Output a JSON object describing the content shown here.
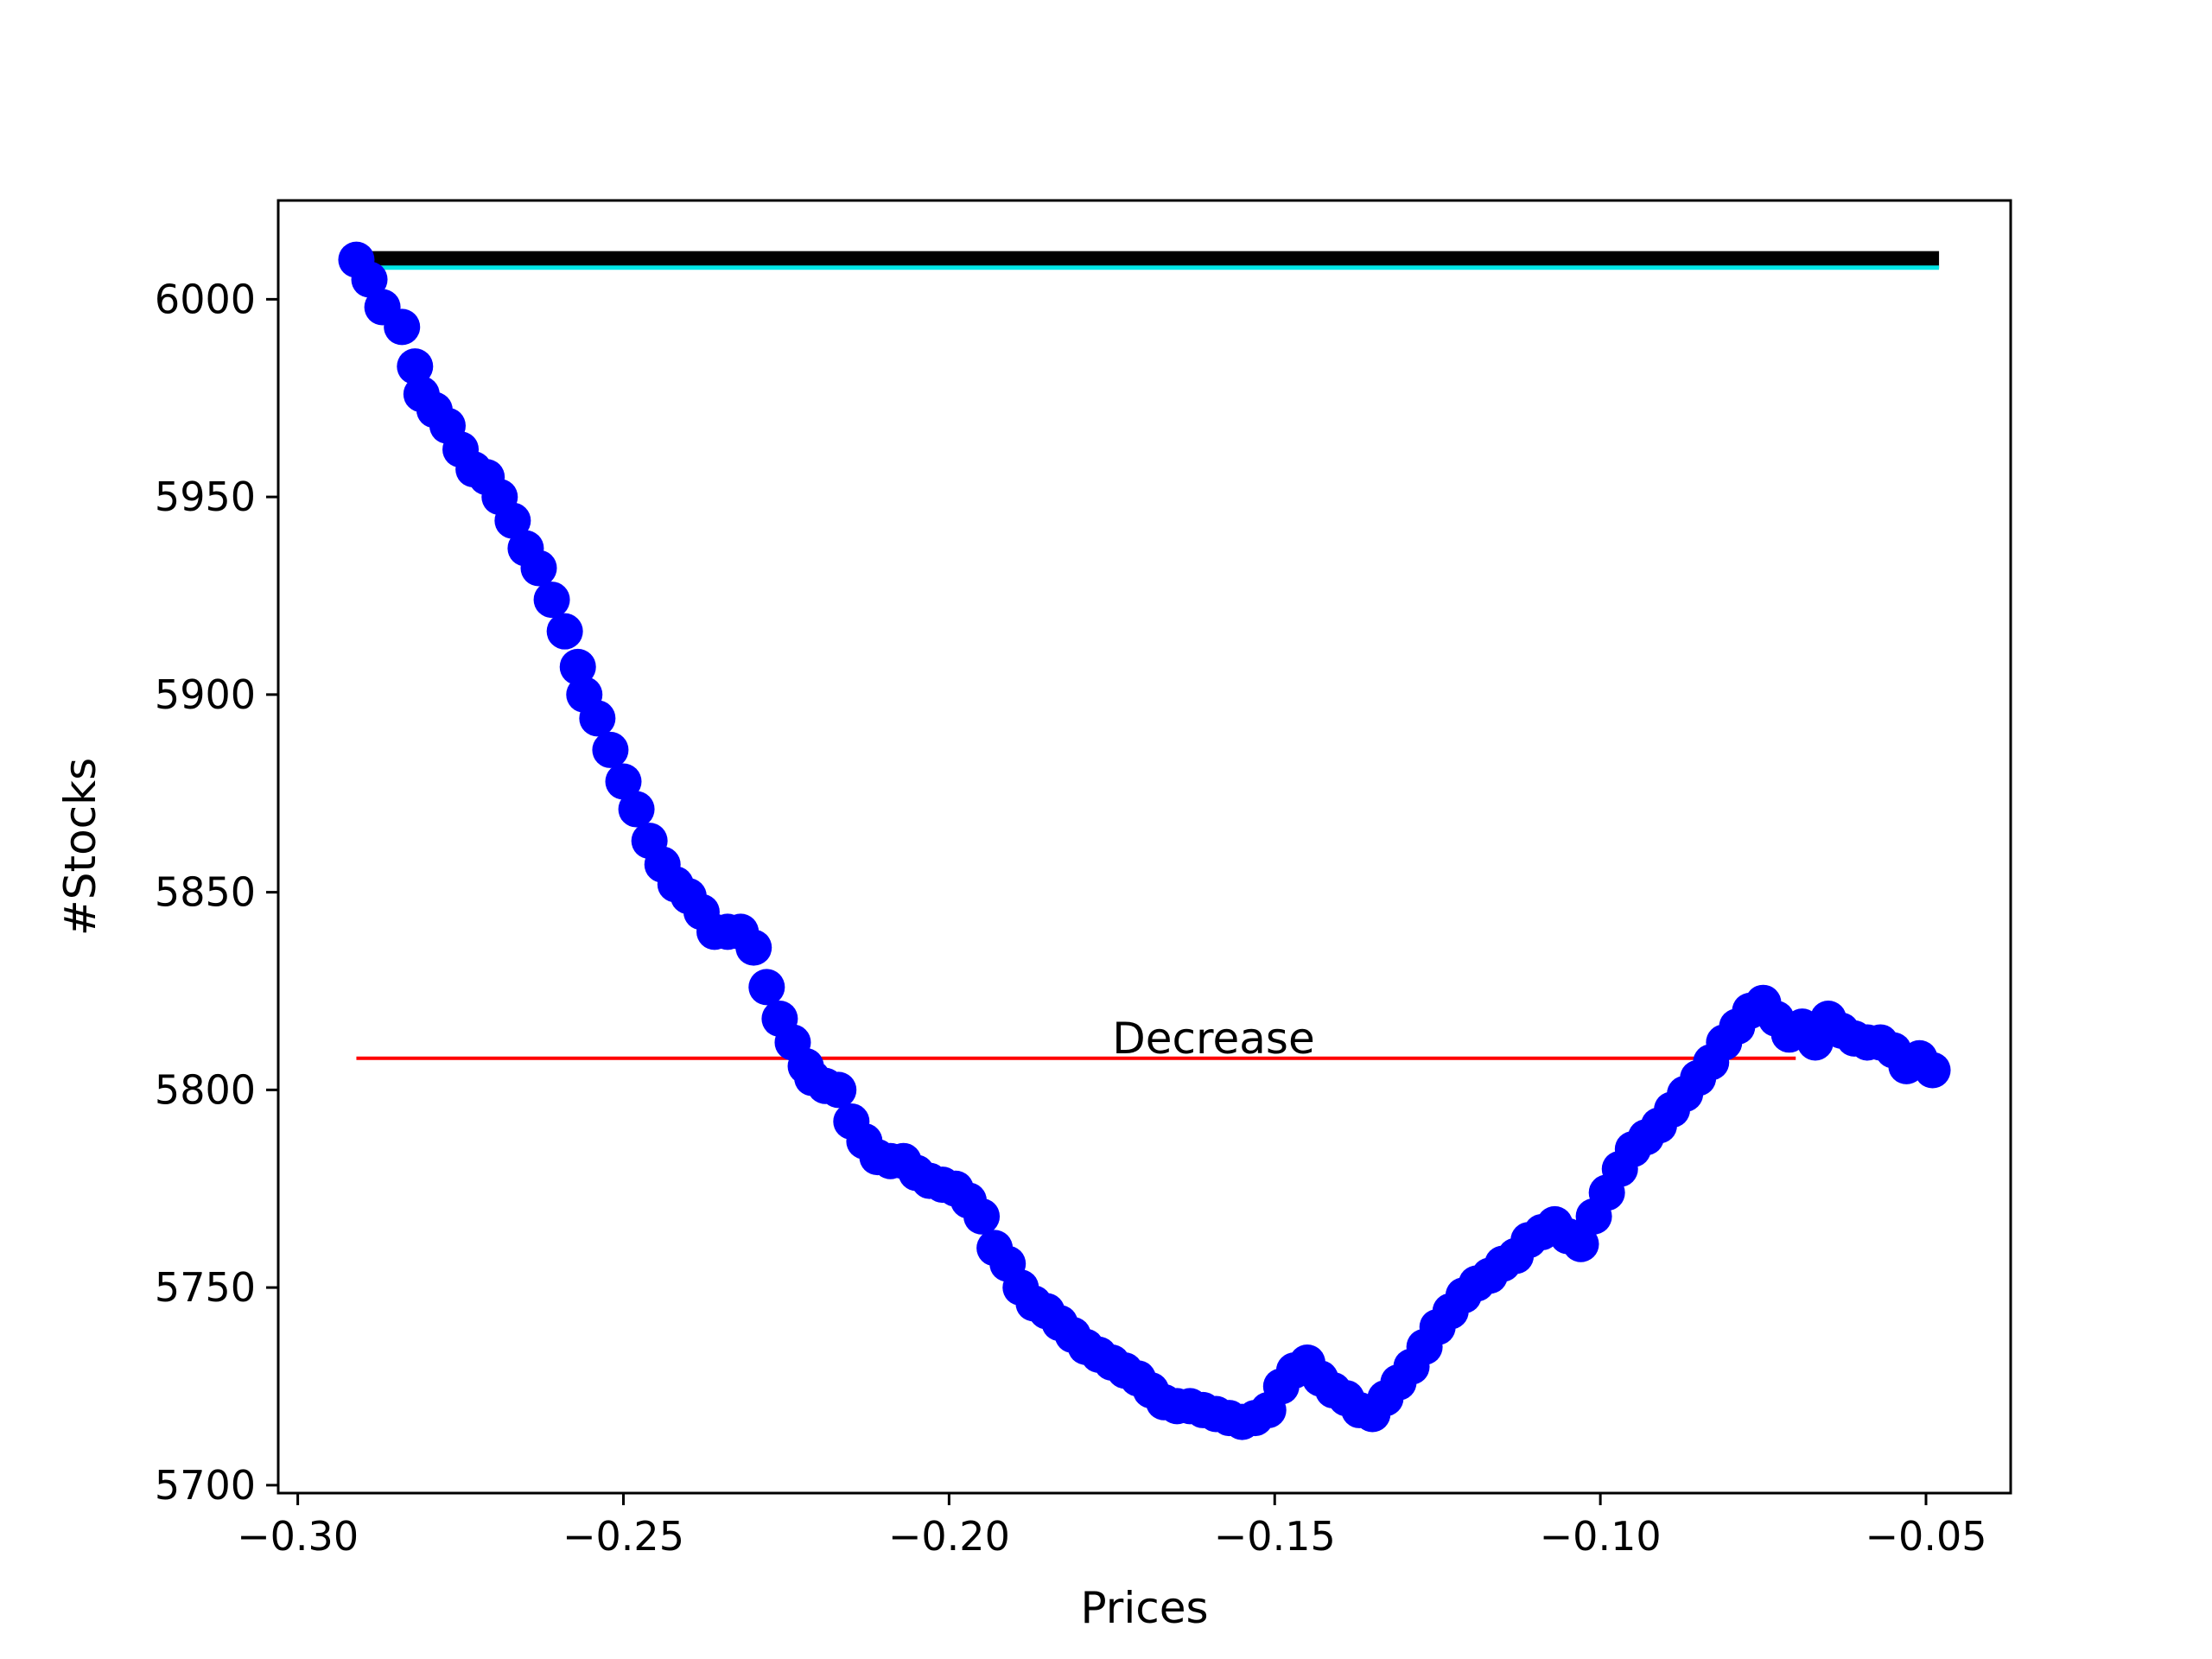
{
  "chart_data": {
    "type": "scatter",
    "title": "",
    "xlabel": "Prices",
    "ylabel": "#Stocks",
    "xlim": [
      -0.303,
      -0.037
    ],
    "ylim": [
      5698,
      6025
    ],
    "xticks": [
      -0.3,
      -0.25,
      -0.2,
      -0.15,
      -0.1,
      -0.05
    ],
    "xtick_labels": [
      "−0.30",
      "−0.25",
      "−0.20",
      "−0.15",
      "−0.10",
      "−0.05"
    ],
    "yticks": [
      5700,
      5750,
      5800,
      5850,
      5900,
      5950,
      6000
    ],
    "ytick_labels": [
      "5700",
      "5750",
      "5800",
      "5850",
      "5900",
      "5950",
      "6000"
    ],
    "grid": false,
    "reference_lines": [
      {
        "color": "#000000",
        "y": 6010,
        "x": [
          -0.291,
          -0.048
        ]
      },
      {
        "color": "#00e5e5",
        "y": 6008,
        "x": [
          -0.291,
          -0.048
        ]
      },
      {
        "color": "#ff0000",
        "y": 5808,
        "x": [
          -0.291,
          -0.07
        ]
      }
    ],
    "annotation": {
      "text": "Decrease",
      "x": -0.17,
      "y": 5811
    },
    "series": [
      {
        "color": "#0000ff",
        "x": [
          -0.291,
          -0.289,
          -0.287,
          -0.284,
          -0.282,
          -0.281,
          -0.279,
          -0.277,
          -0.275,
          -0.273,
          -0.271,
          -0.269,
          -0.267,
          -0.265,
          -0.263,
          -0.261,
          -0.259,
          -0.257,
          -0.256,
          -0.254,
          -0.252,
          -0.25,
          -0.248,
          -0.246,
          -0.244,
          -0.242,
          -0.24,
          -0.238,
          -0.236,
          -0.234,
          -0.232,
          -0.23,
          -0.228,
          -0.226,
          -0.224,
          -0.222,
          -0.221,
          -0.219,
          -0.217,
          -0.215,
          -0.213,
          -0.211,
          -0.209,
          -0.207,
          -0.205,
          -0.203,
          -0.201,
          -0.199,
          -0.197,
          -0.195,
          -0.193,
          -0.191,
          -0.189,
          -0.187,
          -0.185,
          -0.183,
          -0.181,
          -0.179,
          -0.177,
          -0.175,
          -0.173,
          -0.171,
          -0.169,
          -0.167,
          -0.165,
          -0.163,
          -0.161,
          -0.159,
          -0.157,
          -0.155,
          -0.153,
          -0.151,
          -0.149,
          -0.147,
          -0.145,
          -0.143,
          -0.141,
          -0.139,
          -0.137,
          -0.135,
          -0.133,
          -0.131,
          -0.129,
          -0.127,
          -0.125,
          -0.123,
          -0.121,
          -0.119,
          -0.117,
          -0.115,
          -0.113,
          -0.111,
          -0.109,
          -0.107,
          -0.105,
          -0.103,
          -0.101,
          -0.099,
          -0.097,
          -0.095,
          -0.093,
          -0.091,
          -0.089,
          -0.087,
          -0.085,
          -0.083,
          -0.081,
          -0.079,
          -0.077,
          -0.075,
          -0.073,
          -0.071,
          -0.069,
          -0.067,
          -0.065,
          -0.063,
          -0.061,
          -0.059,
          -0.057,
          -0.055,
          -0.053,
          -0.051,
          -0.049
        ],
        "y": [
          6010,
          6005,
          5998,
          5993,
          5983,
          5976,
          5972,
          5968,
          5962,
          5957,
          5955,
          5950,
          5944,
          5937,
          5932,
          5924,
          5916,
          5907,
          5900,
          5894,
          5886,
          5878,
          5871,
          5863,
          5857,
          5852,
          5849,
          5845,
          5840,
          5840,
          5840,
          5836,
          5826,
          5818,
          5812,
          5806,
          5803,
          5801,
          5800,
          5792,
          5787,
          5783,
          5782,
          5782,
          5779,
          5777,
          5776,
          5775,
          5772,
          5768,
          5760,
          5756,
          5750,
          5746,
          5744,
          5741,
          5738,
          5735,
          5733,
          5731,
          5729,
          5727,
          5724,
          5721,
          5720,
          5720,
          5719,
          5718,
          5717,
          5716,
          5717,
          5719,
          5725,
          5729,
          5731,
          5727,
          5724,
          5722,
          5719,
          5718,
          5722,
          5726,
          5730,
          5735,
          5740,
          5744,
          5748,
          5751,
          5753,
          5756,
          5758,
          5762,
          5764,
          5766,
          5763,
          5761,
          5768,
          5774,
          5780,
          5785,
          5788,
          5791,
          5795,
          5799,
          5803,
          5807,
          5812,
          5816,
          5820,
          5822,
          5818,
          5814,
          5816,
          5812,
          5818,
          5815,
          5813,
          5812,
          5812,
          5810,
          5806,
          5808,
          5805
        ]
      }
    ]
  }
}
